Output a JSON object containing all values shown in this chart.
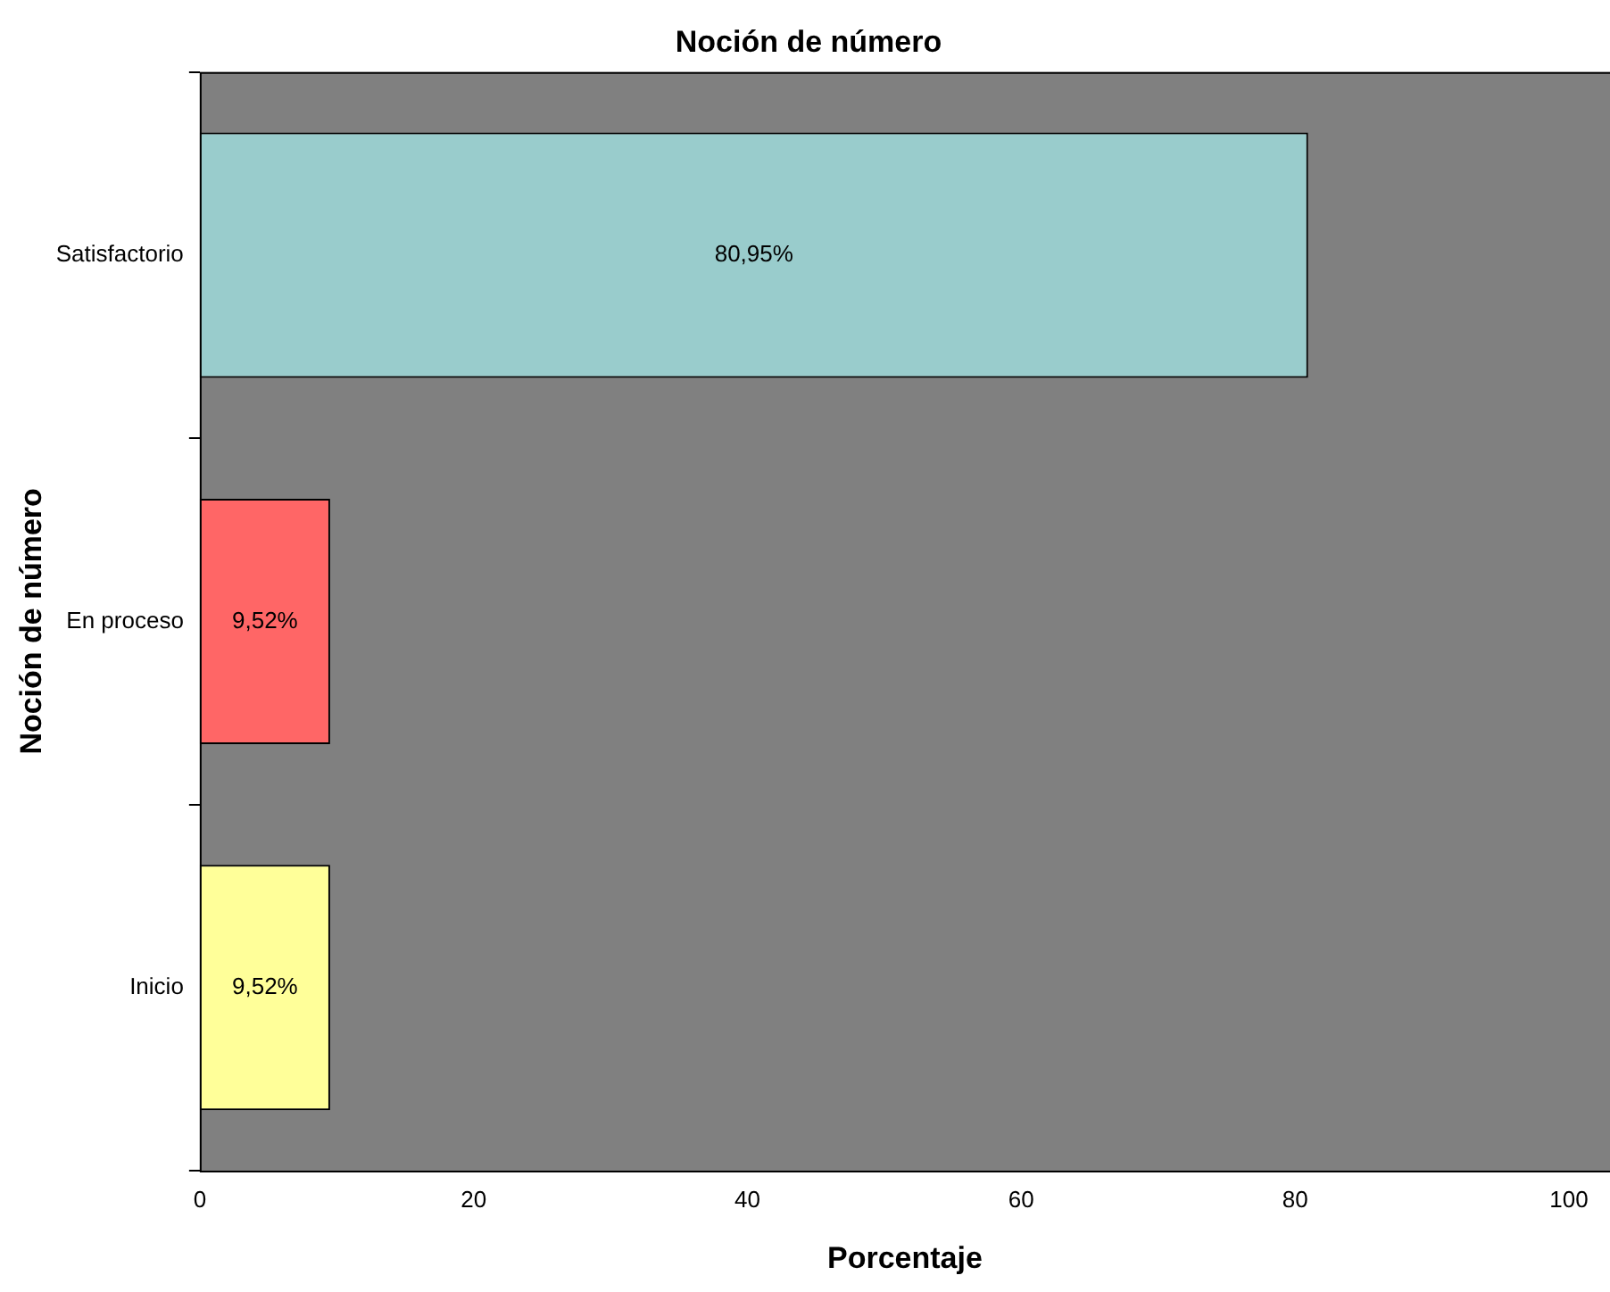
{
  "chart_data": {
    "type": "bar",
    "orientation": "horizontal",
    "title": "Noción de número",
    "xlabel": "Porcentaje",
    "ylabel": "Noción de número",
    "categories": [
      "Satisfactorio",
      "En proceso",
      "Inicio"
    ],
    "values": [
      80.95,
      9.52,
      9.52
    ],
    "colors": [
      "#99cccc",
      "#ff6666",
      "#ffff99"
    ],
    "value_labels": [
      "80,95%",
      "9,52%",
      "9,52%"
    ],
    "xlim": [
      0,
      103
    ],
    "xticks": [
      0,
      20,
      40,
      60,
      80,
      100
    ],
    "grid": false,
    "legend": false
  }
}
